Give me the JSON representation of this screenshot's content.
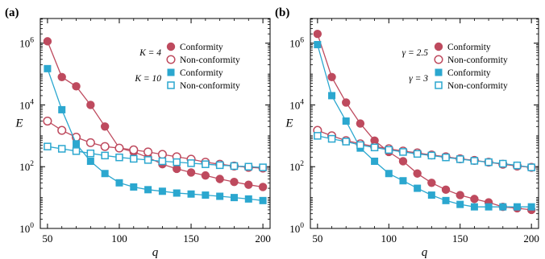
{
  "chart_data": [
    {
      "type": "line",
      "panel_label": "(a)",
      "xlabel": "q",
      "ylabel": "E",
      "xlim": [
        45,
        205
      ],
      "ylim": [
        1,
        6309573
      ],
      "yscale": "log",
      "xticks": [
        50,
        100,
        150,
        200
      ],
      "xtick_labels": [
        "50",
        "100",
        "150",
        "200"
      ],
      "yticks": [
        1,
        100,
        10000,
        1000000
      ],
      "ytick_labels": [
        {
          "base": "10",
          "exp": "0"
        },
        {
          "base": "10",
          "exp": "2"
        },
        {
          "base": "10",
          "exp": "4"
        },
        {
          "base": "10",
          "exp": "6"
        }
      ],
      "legend_location": "upper right",
      "legend_groups": [
        {
          "param_label": "K = 4",
          "entries": [
            0,
            1
          ]
        },
        {
          "param_label": "K = 10",
          "entries": [
            2,
            3
          ]
        }
      ],
      "x": [
        50,
        60,
        70,
        80,
        90,
        100,
        110,
        120,
        130,
        140,
        150,
        160,
        170,
        180,
        190,
        200
      ],
      "series": [
        {
          "name": "Conformity",
          "marker": "circle-filled",
          "color": "#be4a5e",
          "values": [
            1150000,
            80000,
            40000,
            10000,
            2000,
            400,
            300,
            200,
            120,
            85,
            65,
            52,
            40,
            32,
            26,
            22
          ]
        },
        {
          "name": "Non-conformity",
          "marker": "circle-open",
          "color": "#be4a5e",
          "values": [
            3000,
            1500,
            900,
            600,
            450,
            400,
            350,
            300,
            250,
            210,
            175,
            140,
            120,
            105,
            95,
            90
          ]
        },
        {
          "name": "Conformity",
          "marker": "square-filled",
          "color": "#2ba7cf",
          "values": [
            150000,
            7000,
            550,
            150,
            60,
            30,
            22,
            18,
            16,
            14,
            13,
            12,
            11,
            10,
            9,
            8
          ]
        },
        {
          "name": "Non-conformity",
          "marker": "square-open",
          "color": "#2ba7cf",
          "values": [
            450,
            380,
            320,
            270,
            230,
            200,
            180,
            165,
            150,
            140,
            130,
            120,
            112,
            105,
            100,
            95
          ]
        }
      ]
    },
    {
      "type": "line",
      "panel_label": "(b)",
      "xlabel": "q",
      "ylabel": "E",
      "xlim": [
        45,
        205
      ],
      "ylim": [
        1,
        6309573
      ],
      "yscale": "log",
      "xticks": [
        50,
        100,
        150,
        200
      ],
      "xtick_labels": [
        "50",
        "100",
        "150",
        "200"
      ],
      "yticks": [
        1,
        100,
        10000,
        1000000
      ],
      "ytick_labels": [
        {
          "base": "10",
          "exp": "0"
        },
        {
          "base": "10",
          "exp": "2"
        },
        {
          "base": "10",
          "exp": "4"
        },
        {
          "base": "10",
          "exp": "6"
        }
      ],
      "legend_location": "upper right",
      "legend_groups": [
        {
          "param_label": "γ = 2.5",
          "entries": [
            0,
            1
          ]
        },
        {
          "param_label": "γ = 3",
          "entries": [
            2,
            3
          ]
        }
      ],
      "x": [
        50,
        60,
        70,
        80,
        90,
        100,
        110,
        120,
        130,
        140,
        150,
        160,
        170,
        180,
        190,
        200
      ],
      "series": [
        {
          "name": "Conformity",
          "marker": "circle-filled",
          "color": "#be4a5e",
          "values": [
            2000000,
            80000,
            12000,
            2500,
            700,
            300,
            150,
            60,
            30,
            18,
            12,
            9,
            7,
            5,
            4.5,
            4
          ]
        },
        {
          "name": "Non-conformity",
          "marker": "circle-open",
          "color": "#be4a5e",
          "values": [
            1500,
            1000,
            700,
            550,
            450,
            380,
            320,
            280,
            240,
            210,
            180,
            160,
            140,
            120,
            105,
            95
          ]
        },
        {
          "name": "Conformity",
          "marker": "square-filled",
          "color": "#2ba7cf",
          "values": [
            900000,
            20000,
            3000,
            400,
            150,
            60,
            35,
            20,
            12,
            8,
            6,
            5,
            5,
            5,
            5,
            5
          ]
        },
        {
          "name": "Non-conformity",
          "marker": "square-open",
          "color": "#2ba7cf",
          "values": [
            1000,
            800,
            650,
            500,
            420,
            350,
            300,
            260,
            230,
            200,
            175,
            155,
            140,
            125,
            110,
            95
          ]
        }
      ]
    }
  ]
}
